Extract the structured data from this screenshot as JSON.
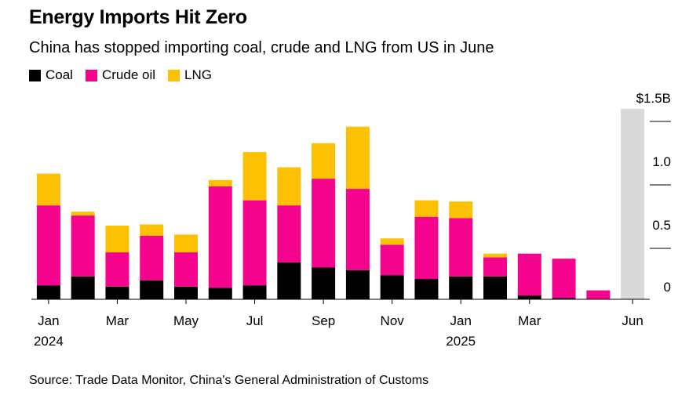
{
  "header": {
    "title": "Energy Imports Hit Zero",
    "subtitle": "China has stopped importing coal, crude and LNG from US in June"
  },
  "legend": [
    {
      "label": "Coal",
      "color": "#000000"
    },
    {
      "label": "Crude oil",
      "color": "#f5038c"
    },
    {
      "label": "LNG",
      "color": "#fbc102"
    }
  ],
  "source": "Source: Trade Data Monitor, China's General Administration of Customs",
  "chart_data": {
    "type": "bar",
    "stacked": true,
    "ylim": [
      0,
      1.5
    ],
    "y_ticks": [
      {
        "value": 0,
        "label": "0"
      },
      {
        "value": 0.5,
        "label": "0.5"
      },
      {
        "value": 1.0,
        "label": "1.0"
      },
      {
        "value": 1.5,
        "label": "$1.5B"
      }
    ],
    "x_tick_labels": [
      {
        "index": 0,
        "label": "Jan",
        "sub": "2024"
      },
      {
        "index": 2,
        "label": "Mar",
        "sub": ""
      },
      {
        "index": 4,
        "label": "May",
        "sub": ""
      },
      {
        "index": 6,
        "label": "Jul",
        "sub": ""
      },
      {
        "index": 8,
        "label": "Sep",
        "sub": ""
      },
      {
        "index": 10,
        "label": "Nov",
        "sub": ""
      },
      {
        "index": 12,
        "label": "Jan",
        "sub": "2025"
      },
      {
        "index": 14,
        "label": "Mar",
        "sub": ""
      },
      {
        "index": 17,
        "label": "Jun",
        "sub": ""
      }
    ],
    "categories": [
      "2024-01",
      "2024-02",
      "2024-03",
      "2024-04",
      "2024-05",
      "2024-06",
      "2024-07",
      "2024-08",
      "2024-09",
      "2024-10",
      "2024-11",
      "2024-12",
      "2025-01",
      "2025-02",
      "2025-03",
      "2025-04",
      "2025-05",
      "2025-06"
    ],
    "series": [
      {
        "name": "Coal",
        "color": "#000000",
        "values": [
          0.11,
          0.18,
          0.1,
          0.15,
          0.1,
          0.09,
          0.11,
          0.29,
          0.25,
          0.23,
          0.19,
          0.16,
          0.18,
          0.18,
          0.03,
          0.01,
          0.0,
          0.0
        ]
      },
      {
        "name": "Crude oil",
        "color": "#f5038c",
        "values": [
          0.63,
          0.48,
          0.27,
          0.35,
          0.27,
          0.8,
          0.67,
          0.45,
          0.7,
          0.64,
          0.24,
          0.49,
          0.46,
          0.15,
          0.33,
          0.31,
          0.07,
          0.0
        ]
      },
      {
        "name": "LNG",
        "color": "#fbc102",
        "values": [
          0.25,
          0.03,
          0.21,
          0.09,
          0.14,
          0.05,
          0.38,
          0.3,
          0.28,
          0.49,
          0.05,
          0.13,
          0.13,
          0.03,
          0.0,
          0.0,
          0.0,
          0.0
        ]
      }
    ],
    "highlight": {
      "index": 17,
      "color": "#d9d9d9"
    }
  }
}
